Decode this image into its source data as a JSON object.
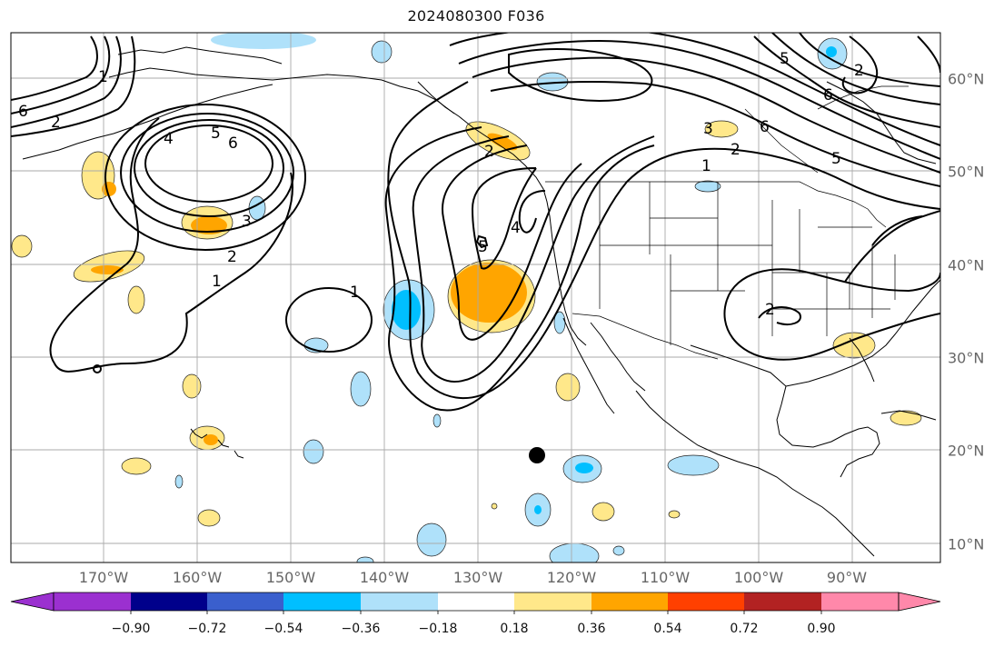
{
  "title": "2024080300 F036",
  "map": {
    "lon_labels": [
      "170°W",
      "160°W",
      "150°W",
      "140°W",
      "130°W",
      "120°W",
      "110°W",
      "100°W",
      "90°W"
    ],
    "lat_labels": [
      "60°N",
      "50°N",
      "40°N",
      "30°N",
      "20°N",
      "10°N"
    ],
    "contour_labels": [
      "1",
      "2",
      "3",
      "4",
      "5",
      "6"
    ],
    "storm_marker": "black-dot"
  },
  "colorbar": {
    "ticks": [
      "−0.90",
      "−0.72",
      "−0.54",
      "−0.36",
      "−0.18",
      "0.18",
      "0.36",
      "0.54",
      "0.72",
      "0.90"
    ],
    "colors": [
      "#9b30d0",
      "#00008b",
      "#3a5fcd",
      "#00bfff",
      "#afe1fa",
      "#ffffff",
      "#ffe88a",
      "#ffa500",
      "#ff4000",
      "#b22222",
      "#ff88aa"
    ]
  }
}
